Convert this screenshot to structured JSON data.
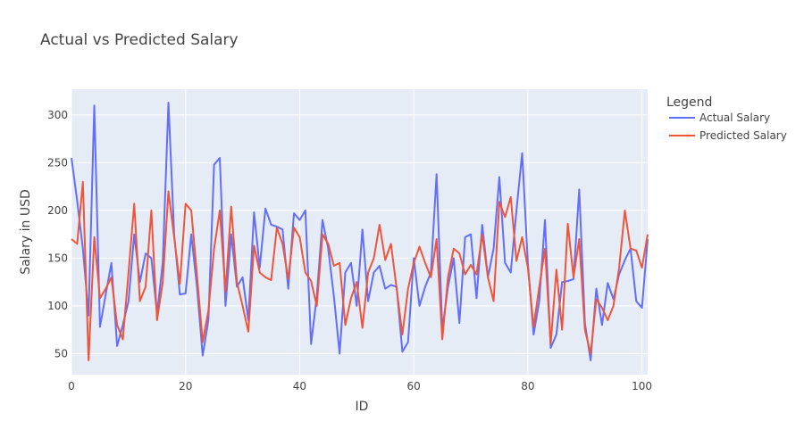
{
  "chart_data": {
    "type": "line",
    "title": "Actual vs Predicted Salary",
    "xlabel": "ID",
    "ylabel": "Salary in USD",
    "xlim": [
      0,
      101
    ],
    "ylim": [
      28,
      327
    ],
    "x_ticks": [
      0,
      20,
      40,
      60,
      80,
      100
    ],
    "y_ticks": [
      50,
      100,
      150,
      200,
      250,
      300
    ],
    "grid": true,
    "legend": {
      "title": "Legend",
      "placement": "right"
    },
    "x": [
      0,
      1,
      2,
      3,
      4,
      5,
      6,
      7,
      8,
      9,
      10,
      11,
      12,
      13,
      14,
      15,
      16,
      17,
      18,
      19,
      20,
      21,
      22,
      23,
      24,
      25,
      26,
      27,
      28,
      29,
      30,
      31,
      32,
      33,
      34,
      35,
      36,
      37,
      38,
      39,
      40,
      41,
      42,
      43,
      44,
      45,
      46,
      47,
      48,
      49,
      50,
      51,
      52,
      53,
      54,
      55,
      56,
      57,
      58,
      59,
      60,
      61,
      62,
      63,
      64,
      65,
      66,
      67,
      68,
      69,
      70,
      71,
      72,
      73,
      74,
      75,
      76,
      77,
      78,
      79,
      80,
      81,
      82,
      83,
      84,
      85,
      86,
      87,
      88,
      89,
      90,
      91,
      92,
      93,
      94,
      95,
      96,
      97,
      98,
      99,
      100,
      101
    ],
    "series": [
      {
        "name": "Actual Salary",
        "color": "#636efa",
        "values": [
          255,
          210,
          160,
          90,
          310,
          78,
          112,
          145,
          58,
          80,
          105,
          175,
          125,
          155,
          150,
          92,
          145,
          313,
          175,
          112,
          113,
          175,
          120,
          48,
          85,
          248,
          255,
          100,
          175,
          120,
          130,
          85,
          198,
          140,
          202,
          185,
          183,
          180,
          118,
          197,
          190,
          200,
          60,
          110,
          190,
          160,
          110,
          50,
          135,
          145,
          100,
          180,
          105,
          135,
          142,
          118,
          122,
          120,
          52,
          62,
          150,
          100,
          120,
          135,
          238,
          75,
          120,
          150,
          82,
          172,
          175,
          108,
          185,
          130,
          160,
          235,
          145,
          135,
          200,
          260,
          145,
          70,
          105,
          190,
          56,
          70,
          125,
          126,
          128,
          222,
          82,
          43,
          118,
          80,
          124,
          107,
          133,
          148,
          160,
          105,
          98,
          170
        ]
      },
      {
        "name": "Predicted Salary",
        "color": "#ef553b",
        "values": [
          170,
          165,
          230,
          43,
          172,
          108,
          118,
          130,
          80,
          65,
          135,
          207,
          105,
          120,
          200,
          85,
          125,
          220,
          172,
          123,
          207,
          200,
          132,
          62,
          95,
          160,
          200,
          115,
          204,
          125,
          100,
          73,
          163,
          135,
          130,
          127,
          182,
          165,
          128,
          182,
          172,
          135,
          126,
          100,
          175,
          165,
          142,
          145,
          80,
          108,
          125,
          77,
          135,
          150,
          185,
          148,
          165,
          118,
          70,
          118,
          145,
          162,
          145,
          130,
          170,
          65,
          130,
          160,
          155,
          133,
          143,
          133,
          175,
          130,
          105,
          209,
          193,
          214,
          147,
          172,
          140,
          78,
          120,
          160,
          60,
          138,
          75,
          186,
          130,
          170,
          75,
          50,
          107,
          98,
          85,
          100,
          140,
          200,
          160,
          158,
          140,
          175
        ]
      }
    ]
  }
}
